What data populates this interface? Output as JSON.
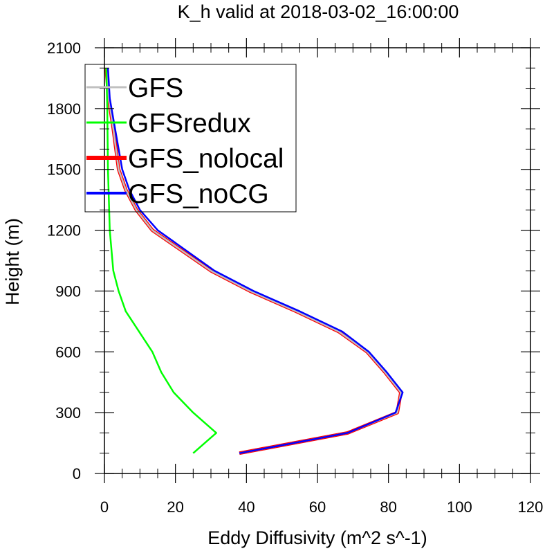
{
  "chart_data": {
    "type": "line",
    "title": "K_h valid at 2018-03-02_16:00:00",
    "xlabel": "Eddy Diffusivity (m^2 s^-1)",
    "ylabel": "Height (m)",
    "xlim": [
      0,
      120
    ],
    "ylim": [
      0,
      2100
    ],
    "xticks": [
      0,
      20,
      40,
      60,
      80,
      100,
      120
    ],
    "yticks": [
      0,
      300,
      600,
      900,
      1200,
      1500,
      1800,
      2100
    ],
    "xtick_labels": [
      "0",
      "20",
      "40",
      "60",
      "80",
      "100",
      "120"
    ],
    "ytick_labels": [
      "0",
      "300",
      "600",
      "900",
      "1200",
      "1500",
      "1800",
      "2100"
    ],
    "grid": false,
    "legend_position": "top-left",
    "series": [
      {
        "name": "GFS_nolocal",
        "color": "#ff0000",
        "points": [
          [
            38,
            100
          ],
          [
            68.5,
            200
          ],
          [
            82.5,
            300
          ],
          [
            83.5,
            400
          ],
          [
            79,
            500
          ],
          [
            74,
            600
          ],
          [
            66,
            700
          ],
          [
            54,
            800
          ],
          [
            41,
            900
          ],
          [
            30,
            1000
          ],
          [
            13.5,
            1200
          ],
          [
            9,
            1300
          ],
          [
            6,
            1400
          ],
          [
            4,
            1500
          ],
          [
            2.5,
            1700
          ],
          [
            1.2,
            1850
          ],
          [
            0.5,
            2000
          ]
        ]
      },
      {
        "name": "GFS",
        "color": "#c0c0c0",
        "points": [
          [
            38,
            100
          ],
          [
            68.5,
            200
          ],
          [
            82.5,
            300
          ],
          [
            83.5,
            400
          ],
          [
            79,
            500
          ],
          [
            74,
            600
          ],
          [
            66,
            700
          ],
          [
            54,
            800
          ],
          [
            41,
            900
          ],
          [
            30,
            1000
          ],
          [
            13.5,
            1200
          ],
          [
            9,
            1300
          ],
          [
            6,
            1400
          ],
          [
            4,
            1500
          ],
          [
            2.5,
            1700
          ],
          [
            1.2,
            1850
          ],
          [
            0.5,
            2000
          ]
        ]
      },
      {
        "name": "GFS_noCG",
        "color": "#0000ff",
        "points": [
          [
            38,
            100
          ],
          [
            68.5,
            200
          ],
          [
            82,
            300
          ],
          [
            84,
            400
          ],
          [
            79.5,
            500
          ],
          [
            74.5,
            600
          ],
          [
            67,
            700
          ],
          [
            55,
            800
          ],
          [
            42,
            900
          ],
          [
            31,
            1000
          ],
          [
            15,
            1200
          ],
          [
            10,
            1300
          ],
          [
            7,
            1400
          ],
          [
            5,
            1500
          ],
          [
            3,
            1700
          ],
          [
            1.5,
            1850
          ],
          [
            1,
            2000
          ]
        ]
      },
      {
        "name": "GFSredux",
        "color": "#00ff00",
        "points": [
          [
            25,
            100
          ],
          [
            31.5,
            200
          ],
          [
            25,
            300
          ],
          [
            19.5,
            400
          ],
          [
            16,
            500
          ],
          [
            13.5,
            600
          ],
          [
            6,
            800
          ],
          [
            4,
            900
          ],
          [
            2.5,
            1000
          ],
          [
            1.5,
            1200
          ],
          [
            1,
            1500
          ],
          [
            0.8,
            1800
          ],
          [
            0.5,
            2000
          ]
        ]
      }
    ],
    "legend": [
      {
        "name": "GFS",
        "color": "#c0c0c0"
      },
      {
        "name": "GFSredux",
        "color": "#00ff00"
      },
      {
        "name": "GFS_nolocal",
        "color": "#ff0000"
      },
      {
        "name": "GFS_noCG",
        "color": "#0000ff"
      }
    ]
  }
}
